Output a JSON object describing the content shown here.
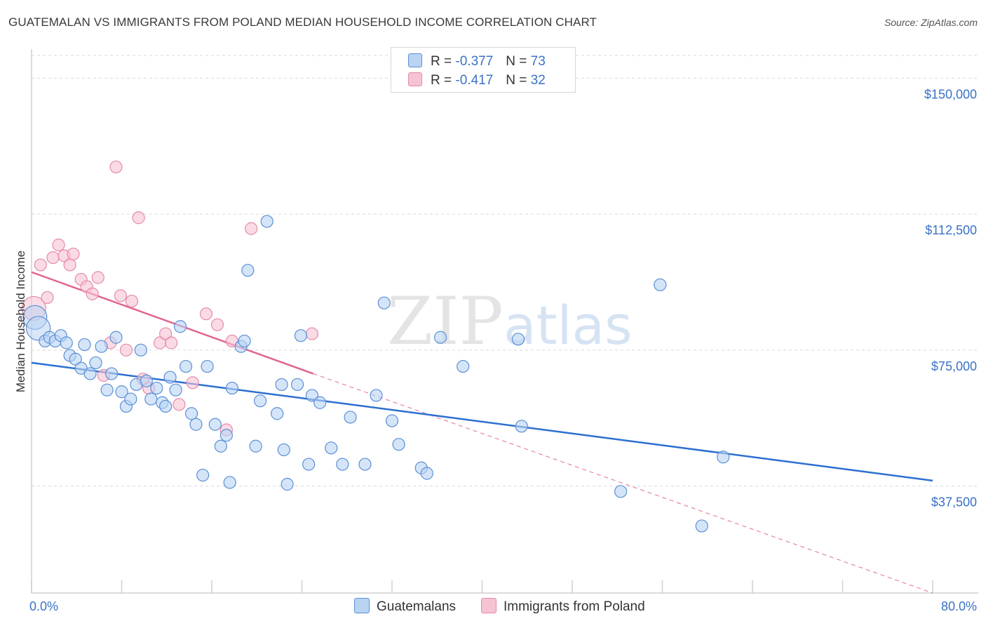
{
  "title": "GUATEMALAN VS IMMIGRANTS FROM POLAND MEDIAN HOUSEHOLD INCOME CORRELATION CHART",
  "source": "Source: ZipAtlas.com",
  "watermark": {
    "zip": "ZIP",
    "atlas": "atlas"
  },
  "legend": {
    "rows": [
      {
        "r_label": "R =",
        "r_value": "-0.377",
        "n_label": "N =",
        "n_value": "73"
      },
      {
        "r_label": "R =",
        "r_value": "-0.417",
        "n_label": "N =",
        "n_value": "32"
      }
    ],
    "bottom": [
      {
        "label": "Guatemalans"
      },
      {
        "label": "Immigrants from Poland"
      }
    ]
  },
  "colors": {
    "blue_fill": "#b9d3f3",
    "blue_stroke": "#5b8fd6",
    "blue_line": "#2c6fd1",
    "pink_fill": "#f6c3d3",
    "pink_stroke": "#e58aa8",
    "pink_line": "#e0648d",
    "grid": "#d9d9d9",
    "tick_text": "#3a72c8"
  },
  "chart_data": {
    "type": "scatter",
    "title": "GUATEMALAN VS IMMIGRANTS FROM POLAND MEDIAN HOUSEHOLD INCOME CORRELATION CHART",
    "xlabel": "",
    "ylabel": "Median Household Income",
    "xlim": [
      0,
      80
    ],
    "ylim": [
      8000,
      158000
    ],
    "x_tick_labels": [
      "0.0%",
      "80.0%"
    ],
    "y_ticks": [
      37500,
      75000,
      112500,
      150000
    ],
    "y_tick_labels": [
      "$37,500",
      "$75,000",
      "$112,500",
      "$150,000"
    ],
    "series": [
      {
        "name": "Guatemalans",
        "color": "blue",
        "trend": {
          "x": [
            0,
            80
          ],
          "y": [
            71500,
            39000
          ],
          "style": "solid"
        },
        "points": [
          {
            "x": 0.3,
            "y": 84000,
            "big": true
          },
          {
            "x": 0.6,
            "y": 81000,
            "big": true
          },
          {
            "x": 1.2,
            "y": 77500
          },
          {
            "x": 1.6,
            "y": 78500
          },
          {
            "x": 2.1,
            "y": 77500
          },
          {
            "x": 2.6,
            "y": 79000
          },
          {
            "x": 3.1,
            "y": 77000
          },
          {
            "x": 3.4,
            "y": 73500
          },
          {
            "x": 3.9,
            "y": 72500
          },
          {
            "x": 4.4,
            "y": 70000
          },
          {
            "x": 4.7,
            "y": 76500
          },
          {
            "x": 5.2,
            "y": 68500
          },
          {
            "x": 5.7,
            "y": 71500
          },
          {
            "x": 6.2,
            "y": 76000
          },
          {
            "x": 6.7,
            "y": 64000
          },
          {
            "x": 7.1,
            "y": 68500
          },
          {
            "x": 7.5,
            "y": 78500
          },
          {
            "x": 8.0,
            "y": 63500
          },
          {
            "x": 8.4,
            "y": 59500
          },
          {
            "x": 8.8,
            "y": 61500
          },
          {
            "x": 9.3,
            "y": 65500
          },
          {
            "x": 9.7,
            "y": 75000
          },
          {
            "x": 10.2,
            "y": 66500
          },
          {
            "x": 10.6,
            "y": 61500
          },
          {
            "x": 11.1,
            "y": 64500
          },
          {
            "x": 11.6,
            "y": 60500
          },
          {
            "x": 11.9,
            "y": 59500
          },
          {
            "x": 12.3,
            "y": 67500
          },
          {
            "x": 12.8,
            "y": 64000
          },
          {
            "x": 13.2,
            "y": 81500
          },
          {
            "x": 13.7,
            "y": 70500
          },
          {
            "x": 14.2,
            "y": 57500
          },
          {
            "x": 14.6,
            "y": 54500
          },
          {
            "x": 15.2,
            "y": 40500
          },
          {
            "x": 15.6,
            "y": 70500
          },
          {
            "x": 16.3,
            "y": 54500
          },
          {
            "x": 16.8,
            "y": 48500
          },
          {
            "x": 17.3,
            "y": 51500
          },
          {
            "x": 17.6,
            "y": 38500
          },
          {
            "x": 17.8,
            "y": 64500
          },
          {
            "x": 18.6,
            "y": 76000
          },
          {
            "x": 18.9,
            "y": 77500
          },
          {
            "x": 19.2,
            "y": 97000
          },
          {
            "x": 19.9,
            "y": 48500
          },
          {
            "x": 20.3,
            "y": 61000
          },
          {
            "x": 20.9,
            "y": 110500
          },
          {
            "x": 21.8,
            "y": 57500
          },
          {
            "x": 22.2,
            "y": 65500
          },
          {
            "x": 22.4,
            "y": 47500
          },
          {
            "x": 22.7,
            "y": 38000
          },
          {
            "x": 23.6,
            "y": 65500
          },
          {
            "x": 23.9,
            "y": 79000
          },
          {
            "x": 24.6,
            "y": 43500
          },
          {
            "x": 24.9,
            "y": 62500
          },
          {
            "x": 25.6,
            "y": 60500
          },
          {
            "x": 26.6,
            "y": 48000
          },
          {
            "x": 27.6,
            "y": 43500
          },
          {
            "x": 28.3,
            "y": 56500
          },
          {
            "x": 29.6,
            "y": 43500
          },
          {
            "x": 30.6,
            "y": 62500
          },
          {
            "x": 31.3,
            "y": 88000
          },
          {
            "x": 32.0,
            "y": 55500
          },
          {
            "x": 32.6,
            "y": 49000
          },
          {
            "x": 34.6,
            "y": 42500
          },
          {
            "x": 35.1,
            "y": 41000
          },
          {
            "x": 36.3,
            "y": 78500
          },
          {
            "x": 38.3,
            "y": 70500
          },
          {
            "x": 43.2,
            "y": 78000
          },
          {
            "x": 43.5,
            "y": 54000
          },
          {
            "x": 52.3,
            "y": 36000
          },
          {
            "x": 55.8,
            "y": 93000
          },
          {
            "x": 59.5,
            "y": 26500
          },
          {
            "x": 61.4,
            "y": 45500
          }
        ]
      },
      {
        "name": "Immigrants from Poland",
        "color": "pink",
        "trend": {
          "x": [
            0,
            25
          ],
          "y": [
            96500,
            68500
          ],
          "style": "solid",
          "extension": {
            "x": [
              25,
              80
            ],
            "y": [
              68500,
              8000
            ],
            "style": "dashed"
          }
        },
        "points": [
          {
            "x": 0.2,
            "y": 86500,
            "big": true
          },
          {
            "x": 0.8,
            "y": 98500
          },
          {
            "x": 1.4,
            "y": 89500
          },
          {
            "x": 1.9,
            "y": 100500
          },
          {
            "x": 2.4,
            "y": 104000
          },
          {
            "x": 2.9,
            "y": 101000
          },
          {
            "x": 3.4,
            "y": 98500
          },
          {
            "x": 3.7,
            "y": 101500
          },
          {
            "x": 4.4,
            "y": 94500
          },
          {
            "x": 4.9,
            "y": 92500
          },
          {
            "x": 5.4,
            "y": 90500
          },
          {
            "x": 5.9,
            "y": 95000
          },
          {
            "x": 6.4,
            "y": 68000
          },
          {
            "x": 7.0,
            "y": 77000
          },
          {
            "x": 7.5,
            "y": 125500
          },
          {
            "x": 7.9,
            "y": 90000
          },
          {
            "x": 8.4,
            "y": 75000
          },
          {
            "x": 8.9,
            "y": 88500
          },
          {
            "x": 9.5,
            "y": 111500
          },
          {
            "x": 9.9,
            "y": 67000
          },
          {
            "x": 10.4,
            "y": 64500
          },
          {
            "x": 11.4,
            "y": 77000
          },
          {
            "x": 11.9,
            "y": 79500
          },
          {
            "x": 12.4,
            "y": 77000
          },
          {
            "x": 13.1,
            "y": 60000
          },
          {
            "x": 14.3,
            "y": 66000
          },
          {
            "x": 15.5,
            "y": 85000
          },
          {
            "x": 16.5,
            "y": 82000
          },
          {
            "x": 17.3,
            "y": 53000
          },
          {
            "x": 17.8,
            "y": 77500
          },
          {
            "x": 19.5,
            "y": 108500
          },
          {
            "x": 24.9,
            "y": 79500
          }
        ]
      }
    ]
  }
}
